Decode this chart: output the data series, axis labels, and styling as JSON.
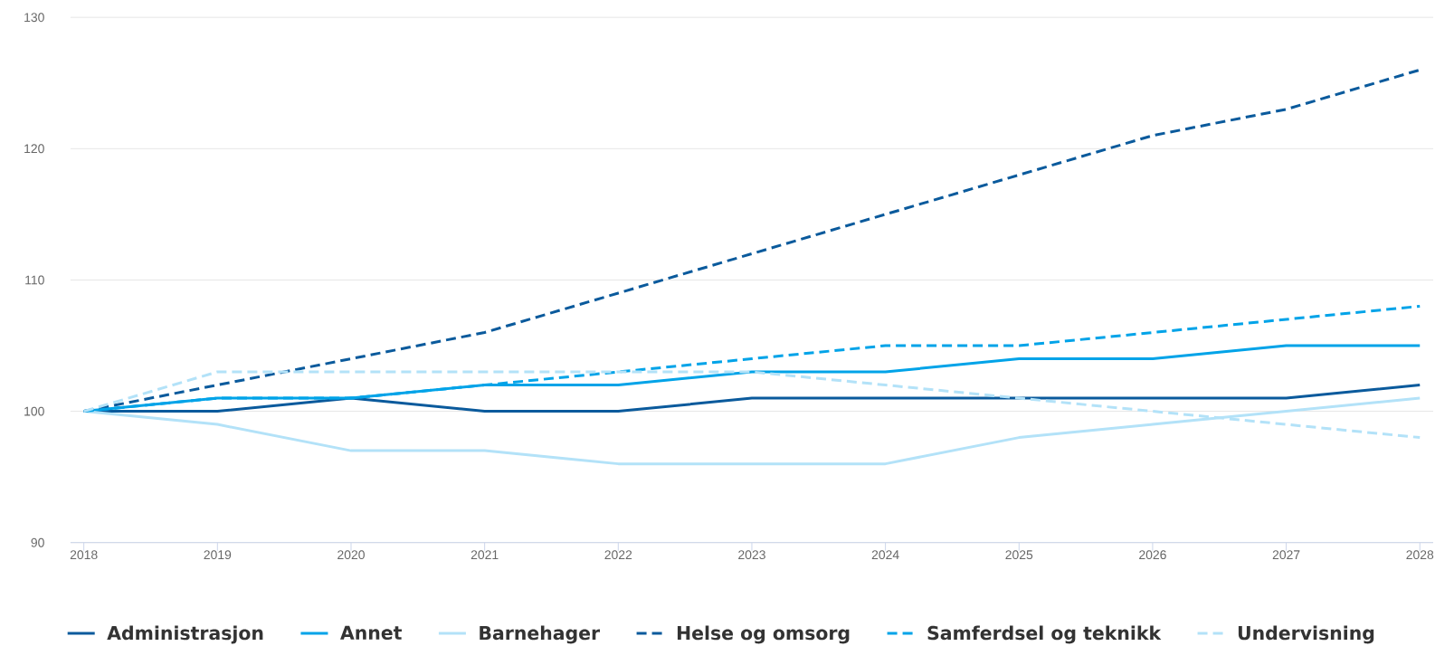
{
  "chart_data": {
    "type": "line",
    "x": [
      2018,
      2019,
      2020,
      2021,
      2022,
      2023,
      2024,
      2025,
      2026,
      2027,
      2028
    ],
    "xlim": [
      2017.9,
      2028.1
    ],
    "xticks": [
      2018,
      2019,
      2020,
      2021,
      2022,
      2023,
      2024,
      2025,
      2026,
      2027,
      2028
    ],
    "ylim": [
      90,
      130
    ],
    "yticks": [
      90,
      100,
      110,
      120,
      130
    ],
    "grid": "y",
    "legend": "bottom",
    "series": [
      {
        "name": "Administrasjon",
        "color": "#0a5a9c",
        "line_style": "solid",
        "values": [
          100,
          100,
          101,
          100,
          100,
          101,
          101,
          101,
          101,
          101,
          102
        ]
      },
      {
        "name": "Annet",
        "color": "#00a3e8",
        "line_style": "solid",
        "values": [
          100,
          101,
          101,
          102,
          102,
          103,
          103,
          104,
          104,
          105,
          105
        ]
      },
      {
        "name": "Barnehager",
        "color": "#b3e2f8",
        "line_style": "solid",
        "values": [
          100,
          99,
          97,
          97,
          96,
          96,
          96,
          98,
          99,
          100,
          101
        ]
      },
      {
        "name": "Helse og omsorg",
        "color": "#0a5a9c",
        "line_style": "dashed",
        "values": [
          100,
          102,
          104,
          106,
          109,
          112,
          115,
          118,
          121,
          123,
          126
        ]
      },
      {
        "name": "Samferdsel og teknikk",
        "color": "#00a3e8",
        "line_style": "dashed",
        "values": [
          100,
          101,
          101,
          102,
          103,
          104,
          105,
          105,
          106,
          107,
          108
        ]
      },
      {
        "name": "Undervisning",
        "color": "#b3e2f8",
        "line_style": "dashed",
        "values": [
          100,
          103,
          103,
          103,
          103,
          103,
          102,
          101,
          100,
          99,
          98
        ]
      }
    ]
  }
}
